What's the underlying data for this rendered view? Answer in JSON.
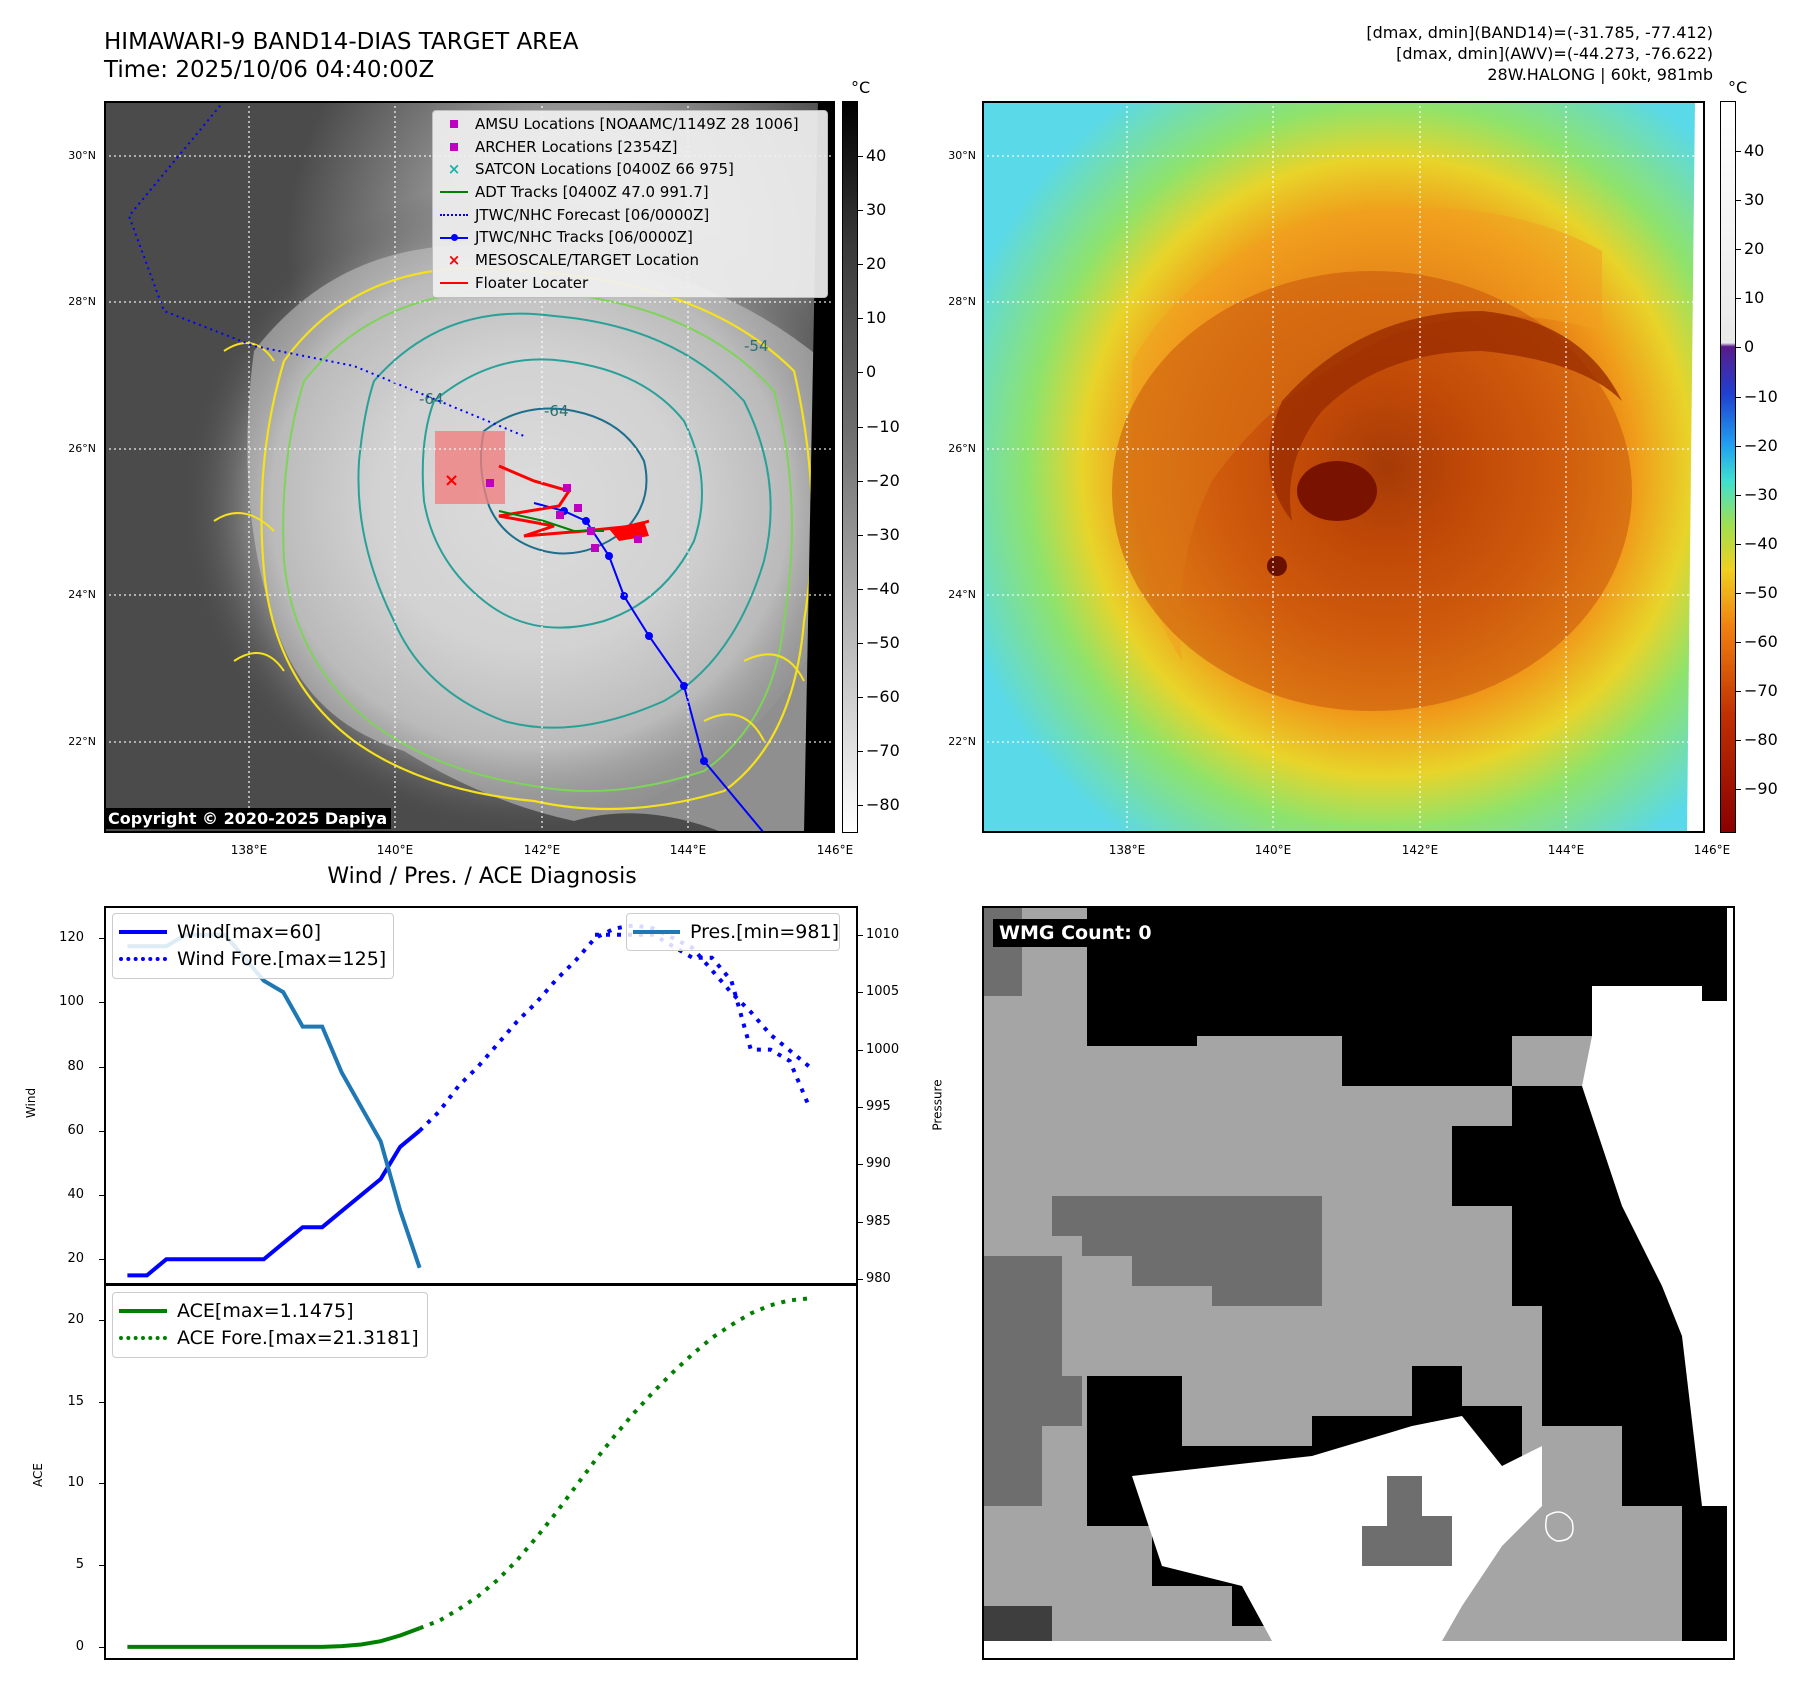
{
  "header": {
    "title": "HIMAWARI-9 BAND14-DIAS TARGET AREA",
    "time": "Time: 2025/10/06 04:40:00Z",
    "band14_range": "[dmax, dmin](BAND14)=(-31.785, -77.412)",
    "awv_range": "[dmax, dmin](AWV)=(-44.273, -76.622)",
    "storm": "28W.HALONG | 60kt, 981mb"
  },
  "geo": {
    "lat_ticks": [
      "30°N",
      "28°N",
      "26°N",
      "24°N",
      "22°N"
    ],
    "lon_ticks": [
      "138°E",
      "140°E",
      "142°E",
      "144°E",
      "146°E"
    ]
  },
  "left_colorbar": {
    "unit": "°C",
    "ticks": [
      "40",
      "30",
      "20",
      "10",
      "0",
      "−10",
      "−20",
      "−30",
      "−40",
      "−50",
      "−60",
      "−70",
      "−80"
    ]
  },
  "right_colorbar": {
    "unit": "°C",
    "ticks": [
      "40",
      "30",
      "20",
      "10",
      "0",
      "−10",
      "−20",
      "−30",
      "−40",
      "−50",
      "−60",
      "−70",
      "−80",
      "−90"
    ]
  },
  "map_legend": [
    {
      "label": "AMSU Locations [NOAAMC/1149Z 28 1006]",
      "symbol": "square",
      "color": "#c000c0"
    },
    {
      "label": "ARCHER Locations [2354Z]",
      "symbol": "square",
      "color": "#c000c0"
    },
    {
      "label": "SATCON Locations [0400Z 66 975]",
      "symbol": "x",
      "color": "#17b3a8"
    },
    {
      "label": "ADT Tracks [0400Z 47.0 991.7]",
      "symbol": "line",
      "color": "#008000"
    },
    {
      "label": "JTWC/NHC Forecast [06/0000Z]",
      "symbol": "dotted",
      "color": "#0000ff"
    },
    {
      "label": "JTWC/NHC Tracks [06/0000Z]",
      "symbol": "line-dot",
      "color": "#0000ff"
    },
    {
      "label": "MESOSCALE/TARGET Location",
      "symbol": "x",
      "color": "#ff0000"
    },
    {
      "label": "Floater Locater",
      "symbol": "line",
      "color": "#ff0000"
    }
  ],
  "contour_labels": [
    "-64",
    "-64",
    "-54"
  ],
  "copyright": "Copyright © 2020-2025 Dapiya",
  "diagnosis_title": "Wind / Pres. / ACE Diagnosis",
  "wmg_label": "WMG Count: 0",
  "chart_data": [
    {
      "type": "line",
      "title": "Wind / Pres. / ACE Diagnosis",
      "ylabel": "Wind",
      "y2label": "Pressure",
      "ylim": [
        12,
        130
      ],
      "y2lim": [
        979.5,
        1012.5
      ],
      "yticks": [
        20,
        40,
        60,
        80,
        100,
        120
      ],
      "y2ticks": [
        980,
        985,
        990,
        995,
        1000,
        1005,
        1010
      ],
      "legend_left": [
        "Wind[max=60]",
        "Wind Fore.[max=125]"
      ],
      "legend_right": [
        "Pres.[min=981]"
      ],
      "series": [
        {
          "name": "Wind[max=60]",
          "axis": "left",
          "style": "solid",
          "color": "#0000ff",
          "x": [
            0,
            1,
            2,
            3,
            4,
            5,
            6,
            7,
            8,
            9,
            10,
            11,
            12,
            13,
            14,
            15
          ],
          "values": [
            15,
            15,
            20,
            20,
            20,
            20,
            20,
            20,
            25,
            30,
            30,
            35,
            40,
            45,
            55,
            60
          ]
        },
        {
          "name": "Wind Fore.[max=125]",
          "axis": "left",
          "style": "dotted",
          "color": "#0000ff",
          "x": [
            15,
            16,
            17,
            18,
            19,
            20,
            21,
            22,
            23,
            24,
            25,
            26,
            27,
            28,
            29,
            30,
            31,
            32,
            33,
            34,
            35
          ],
          "values": [
            60,
            66,
            74,
            80,
            87,
            94,
            100,
            107,
            113,
            120,
            123,
            124,
            123,
            120,
            117,
            110,
            103,
            97,
            90,
            85,
            80
          ]
        },
        {
          "name": "Pres.[min=981]",
          "axis": "right",
          "style": "solid",
          "color": "#1f77b4",
          "x": [
            0,
            1,
            2,
            3,
            4,
            5,
            6,
            7,
            8,
            9,
            10,
            11,
            12,
            13,
            14,
            15
          ],
          "values": [
            1009,
            1009,
            1009,
            1010,
            1010,
            1010,
            1008,
            1006,
            1005,
            1002,
            1002,
            998,
            995,
            992,
            986,
            981
          ]
        },
        {
          "name": "",
          "axis": "right",
          "style": "dotted",
          "color": "#0000ff",
          "x": [
            24,
            25,
            26,
            27,
            28,
            29,
            30,
            31,
            32,
            33,
            34,
            35
          ],
          "values": [
            1010,
            1010,
            1010,
            1010,
            1009,
            1008,
            1008,
            1006,
            1000,
            1000,
            999,
            995
          ]
        }
      ]
    },
    {
      "type": "line",
      "ylabel": "ACE",
      "ylim": [
        -0.8,
        22.2
      ],
      "yticks": [
        0,
        5,
        10,
        15,
        20
      ],
      "legend": [
        "ACE[max=1.1475]",
        "ACE Fore.[max=21.3181]"
      ],
      "series": [
        {
          "name": "ACE[max=1.1475]",
          "style": "solid",
          "color": "#008000",
          "x": [
            0,
            1,
            2,
            3,
            4,
            5,
            6,
            7,
            8,
            9,
            10,
            11,
            12,
            13,
            14,
            15
          ],
          "values": [
            0,
            0,
            0,
            0,
            0,
            0,
            0,
            0,
            0,
            0,
            0,
            0.05,
            0.15,
            0.35,
            0.7,
            1.1475
          ]
        },
        {
          "name": "ACE Fore.[max=21.3181]",
          "style": "dotted",
          "color": "#008000",
          "x": [
            15,
            16,
            17,
            18,
            19,
            20,
            21,
            22,
            23,
            24,
            25,
            26,
            27,
            28,
            29,
            30,
            31,
            32,
            33,
            34,
            35
          ],
          "values": [
            1.1475,
            1.6,
            2.3,
            3.1,
            4.1,
            5.3,
            6.7,
            8.2,
            9.8,
            11.4,
            12.9,
            14.3,
            15.6,
            16.8,
            17.9,
            18.9,
            19.7,
            20.4,
            20.9,
            21.2,
            21.3181
          ]
        }
      ]
    }
  ]
}
